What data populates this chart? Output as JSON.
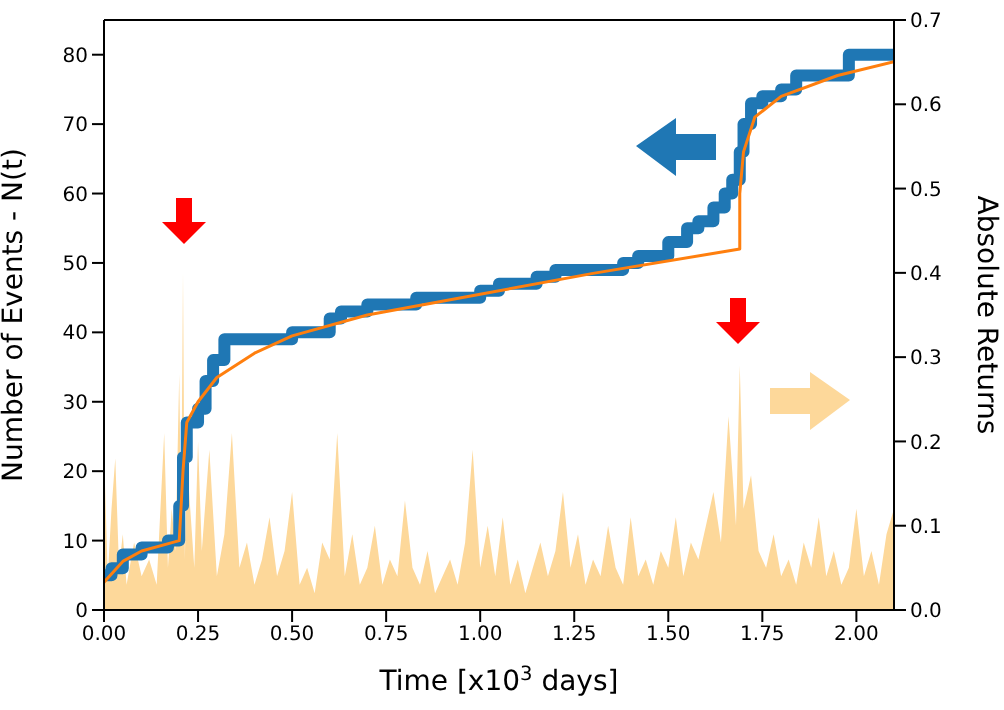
{
  "chart_data": {
    "type": "line",
    "xlabel": "Time [x10$^{3}$ days]",
    "ylabel": "Number of Events - N(t)",
    "y2label": "Absolute Returns",
    "xlim": [
      0,
      2.1
    ],
    "xticks": [
      {
        "value": 0,
        "label": "0.00"
      },
      {
        "value": 0.25,
        "label": "0.25"
      },
      {
        "value": 0.5,
        "label": "0.50"
      },
      {
        "value": 0.75,
        "label": "0.75"
      },
      {
        "value": 1,
        "label": "1.00"
      },
      {
        "value": 1.25,
        "label": "1.25"
      },
      {
        "value": 1.5,
        "label": "1.50"
      },
      {
        "value": 1.75,
        "label": "1.75"
      },
      {
        "value": 2,
        "label": "2.00"
      }
    ],
    "ylim": [
      0,
      85
    ],
    "yticks": [
      0,
      10,
      20,
      30,
      40,
      50,
      60,
      70,
      80
    ],
    "y2lim": [
      0,
      0.7
    ],
    "y2ticks": [
      {
        "value": 0,
        "label": "0.0"
      },
      {
        "value": 0.1,
        "label": "0.1"
      },
      {
        "value": 0.2,
        "label": "0.2"
      },
      {
        "value": 0.3,
        "label": "0.3"
      },
      {
        "value": 0.4,
        "label": "0.4"
      },
      {
        "value": 0.5,
        "label": "0.5"
      },
      {
        "value": 0.6,
        "label": "0.6"
      },
      {
        "value": 0.7,
        "label": "0.7"
      }
    ],
    "series": [
      {
        "type": "area",
        "axis": "y2",
        "color": "#fdd89a",
        "x": [
          0,
          0.01,
          0.02,
          0.03,
          0.04,
          0.05,
          0.06,
          0.08,
          0.1,
          0.12,
          0.14,
          0.16,
          0.17,
          0.18,
          0.19,
          0.2,
          0.205,
          0.21,
          0.215,
          0.22,
          0.24,
          0.25,
          0.26,
          0.28,
          0.3,
          0.32,
          0.34,
          0.36,
          0.38,
          0.4,
          0.42,
          0.44,
          0.46,
          0.48,
          0.5,
          0.52,
          0.54,
          0.56,
          0.58,
          0.6,
          0.62,
          0.64,
          0.66,
          0.68,
          0.7,
          0.72,
          0.74,
          0.76,
          0.78,
          0.8,
          0.82,
          0.84,
          0.86,
          0.88,
          0.9,
          0.92,
          0.94,
          0.96,
          0.98,
          1,
          1.02,
          1.04,
          1.06,
          1.08,
          1.1,
          1.12,
          1.14,
          1.16,
          1.18,
          1.2,
          1.22,
          1.24,
          1.26,
          1.28,
          1.3,
          1.32,
          1.34,
          1.36,
          1.38,
          1.4,
          1.42,
          1.44,
          1.46,
          1.48,
          1.5,
          1.52,
          1.54,
          1.56,
          1.58,
          1.6,
          1.62,
          1.64,
          1.66,
          1.68,
          1.69,
          1.7,
          1.72,
          1.74,
          1.76,
          1.78,
          1.8,
          1.82,
          1.84,
          1.86,
          1.88,
          1.9,
          1.92,
          1.94,
          1.96,
          1.98,
          2,
          2.02,
          2.04,
          2.06,
          2.08,
          2.1
        ],
        "values": [
          0.19,
          0.04,
          0.12,
          0.18,
          0.05,
          0.09,
          0.03,
          0.08,
          0.04,
          0.06,
          0.03,
          0.21,
          0.05,
          0.12,
          0.07,
          0.28,
          0.1,
          0.4,
          0.06,
          0.18,
          0.05,
          0.2,
          0.07,
          0.19,
          0.04,
          0.09,
          0.21,
          0.05,
          0.08,
          0.03,
          0.06,
          0.11,
          0.04,
          0.07,
          0.14,
          0.03,
          0.05,
          0.02,
          0.08,
          0.06,
          0.21,
          0.04,
          0.09,
          0.03,
          0.05,
          0.1,
          0.03,
          0.06,
          0.04,
          0.13,
          0.05,
          0.03,
          0.07,
          0.02,
          0.04,
          0.06,
          0.03,
          0.08,
          0.19,
          0.05,
          0.1,
          0.04,
          0.11,
          0.03,
          0.06,
          0.02,
          0.05,
          0.08,
          0.04,
          0.07,
          0.14,
          0.05,
          0.09,
          0.03,
          0.06,
          0.04,
          0.1,
          0.05,
          0.03,
          0.11,
          0.04,
          0.06,
          0.03,
          0.07,
          0.05,
          0.11,
          0.04,
          0.08,
          0.06,
          0.1,
          0.14,
          0.08,
          0.23,
          0.1,
          0.29,
          0.12,
          0.16,
          0.07,
          0.05,
          0.09,
          0.04,
          0.06,
          0.03,
          0.08,
          0.05,
          0.11,
          0.04,
          0.07,
          0.03,
          0.05,
          0.12,
          0.04,
          0.07,
          0.03,
          0.09,
          0.12
        ]
      },
      {
        "type": "step",
        "color": "#1f77b4",
        "x": [
          0,
          0.02,
          0.05,
          0.1,
          0.17,
          0.2,
          0.21,
          0.22,
          0.25,
          0.27,
          0.29,
          0.32,
          0.5,
          0.6,
          0.63,
          0.7,
          0.83,
          1,
          1.05,
          1.15,
          1.2,
          1.38,
          1.42,
          1.5,
          1.55,
          1.58,
          1.62,
          1.65,
          1.67,
          1.69,
          1.7,
          1.72,
          1.75,
          1.8,
          1.84,
          1.98,
          2.1
        ],
        "values": [
          5,
          6,
          8,
          9,
          10,
          15,
          22,
          27,
          29,
          33,
          36,
          39,
          40,
          42,
          43,
          44,
          45,
          46,
          47,
          48,
          49,
          50,
          51,
          53,
          55,
          56,
          58,
          60,
          62,
          66,
          70,
          73,
          74,
          75,
          77,
          80,
          80
        ]
      },
      {
        "color": "#ff7f0e",
        "x": [
          0,
          0.05,
          0.1,
          0.2,
          0.21,
          0.22,
          0.25,
          0.3,
          0.4,
          0.5,
          0.7,
          1,
          1.3,
          1.69,
          1.69,
          1.7,
          1.73,
          1.8,
          1.95,
          2.1
        ],
        "values": [
          4,
          7,
          8.5,
          10,
          20,
          27,
          30,
          33.5,
          37,
          39.5,
          42.5,
          45.5,
          48.5,
          52,
          60,
          66,
          71,
          74,
          77,
          79
        ]
      }
    ]
  }
}
